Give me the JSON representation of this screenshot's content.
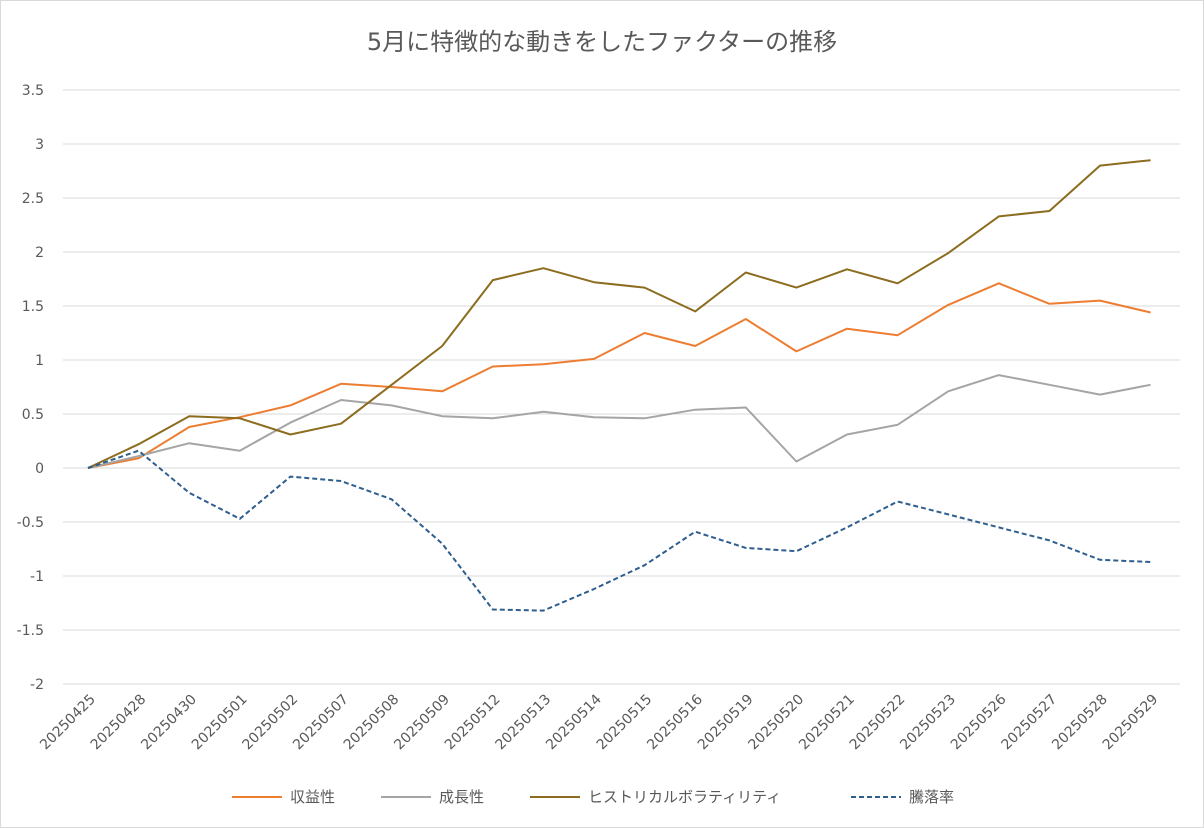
{
  "chart_data": {
    "type": "line",
    "title": "5月に特徴的な動きをしたファクターの推移",
    "categories": [
      "20250425",
      "20250428",
      "20250430",
      "20250501",
      "20250502",
      "20250507",
      "20250508",
      "20250509",
      "20250512",
      "20250513",
      "20250514",
      "20250515",
      "20250516",
      "20250519",
      "20250520",
      "20250521",
      "20250522",
      "20250523",
      "20250526",
      "20250527",
      "20250528",
      "20250529"
    ],
    "ylim": [
      -2,
      3.5
    ],
    "yticks": [
      "3.5",
      "3",
      "2.5",
      "2",
      "1.5",
      "1",
      "0.5",
      "0",
      "-0.5",
      "-1",
      "-1.5",
      "-2"
    ],
    "ytick_values": [
      3.5,
      3,
      2.5,
      2,
      1.5,
      1,
      0.5,
      0,
      -0.5,
      -1,
      -1.5,
      -2
    ],
    "grid": true,
    "legend_position": "bottom",
    "series": [
      {
        "name": "収益性",
        "color": "#ed7d31",
        "dash": "solid",
        "values": [
          0,
          0.09,
          0.38,
          0.47,
          0.58,
          0.78,
          0.75,
          0.71,
          0.94,
          0.96,
          1.01,
          1.25,
          1.13,
          1.38,
          1.08,
          1.29,
          1.23,
          1.51,
          1.71,
          1.52,
          1.55,
          1.44
        ]
      },
      {
        "name": "成長性",
        "color": "#a5a5a5",
        "dash": "solid",
        "values": [
          0,
          0.11,
          0.23,
          0.16,
          0.42,
          0.63,
          0.58,
          0.48,
          0.46,
          0.52,
          0.47,
          0.46,
          0.54,
          0.56,
          0.06,
          0.31,
          0.4,
          0.71,
          0.86,
          0.77,
          0.68,
          0.77
        ]
      },
      {
        "name": "ヒストリカルボラティリティ",
        "color": "#8c6d1f",
        "dash": "solid",
        "values": [
          0,
          0.22,
          0.48,
          0.46,
          0.31,
          0.41,
          0.77,
          1.13,
          1.74,
          1.85,
          1.72,
          1.67,
          1.45,
          1.81,
          1.67,
          1.84,
          1.71,
          1.99,
          2.33,
          2.38,
          2.8,
          2.85
        ]
      },
      {
        "name": "騰落率",
        "color": "#2e5e8e",
        "dash": "dashed",
        "values": [
          0,
          0.16,
          -0.23,
          -0.47,
          -0.08,
          -0.12,
          -0.29,
          -0.7,
          -1.31,
          -1.32,
          -1.12,
          -0.9,
          -0.59,
          -0.74,
          -0.77,
          -0.55,
          -0.31,
          -0.43,
          -0.55,
          -0.67,
          -0.85,
          -0.87
        ]
      }
    ]
  }
}
